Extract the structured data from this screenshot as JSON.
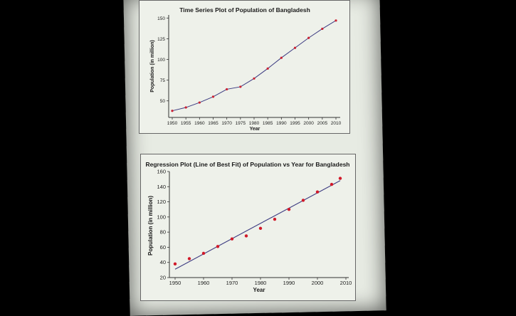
{
  "chart_data": [
    {
      "type": "line",
      "title": "Time Series Plot of Population of Bangladesh",
      "xlabel": "Year",
      "ylabel": "Population (in million)",
      "xlim": [
        1950,
        2010
      ],
      "ylim": [
        30,
        152
      ],
      "x_ticks": [
        "1950",
        "1955",
        "1960",
        "1965",
        "1970",
        "1975",
        "1980",
        "1985",
        "1990",
        "1995",
        "2000",
        "2005",
        "2010"
      ],
      "y_ticks": [
        "50",
        "75",
        "100",
        "125",
        "150"
      ],
      "x": [
        1950,
        1955,
        1960,
        1965,
        1970,
        1975,
        1980,
        1985,
        1990,
        1995,
        2000,
        2005,
        2010
      ],
      "series": [
        {
          "values": [
            38,
            42,
            48,
            55,
            64,
            67,
            77,
            89,
            102,
            114,
            126,
            137,
            147
          ],
          "line_color": "#3b3a80",
          "marker_color": "#cc2233"
        }
      ],
      "grid": false,
      "legend": "none"
    },
    {
      "type": "scatter",
      "title": "Regression Plot (Line of Best Fit) of Population vs Year for Bangladesh",
      "xlabel": "Year",
      "ylabel": "Population (in million)",
      "xlim": [
        1948,
        2011
      ],
      "ylim": [
        20,
        160
      ],
      "x_ticks": [
        "1950",
        "1960",
        "1970",
        "1980",
        "1990",
        "2000",
        "2010"
      ],
      "y_ticks": [
        "20",
        "40",
        "60",
        "80",
        "100",
        "120",
        "140",
        "160"
      ],
      "x": [
        1950,
        1955,
        1960,
        1965,
        1970,
        1975,
        1980,
        1985,
        1990,
        1995,
        2000,
        2005,
        2008
      ],
      "series": [
        {
          "values": [
            38,
            45,
            52,
            61,
            71,
            75,
            85,
            97,
            110,
            122,
            133,
            143,
            151
          ],
          "marker_color": "#d11a2a"
        }
      ],
      "fit_line": {
        "x": [
          1950,
          2008
        ],
        "y": [
          31,
          148
        ],
        "color": "#3b3a80"
      },
      "grid": false,
      "legend": "none"
    }
  ]
}
